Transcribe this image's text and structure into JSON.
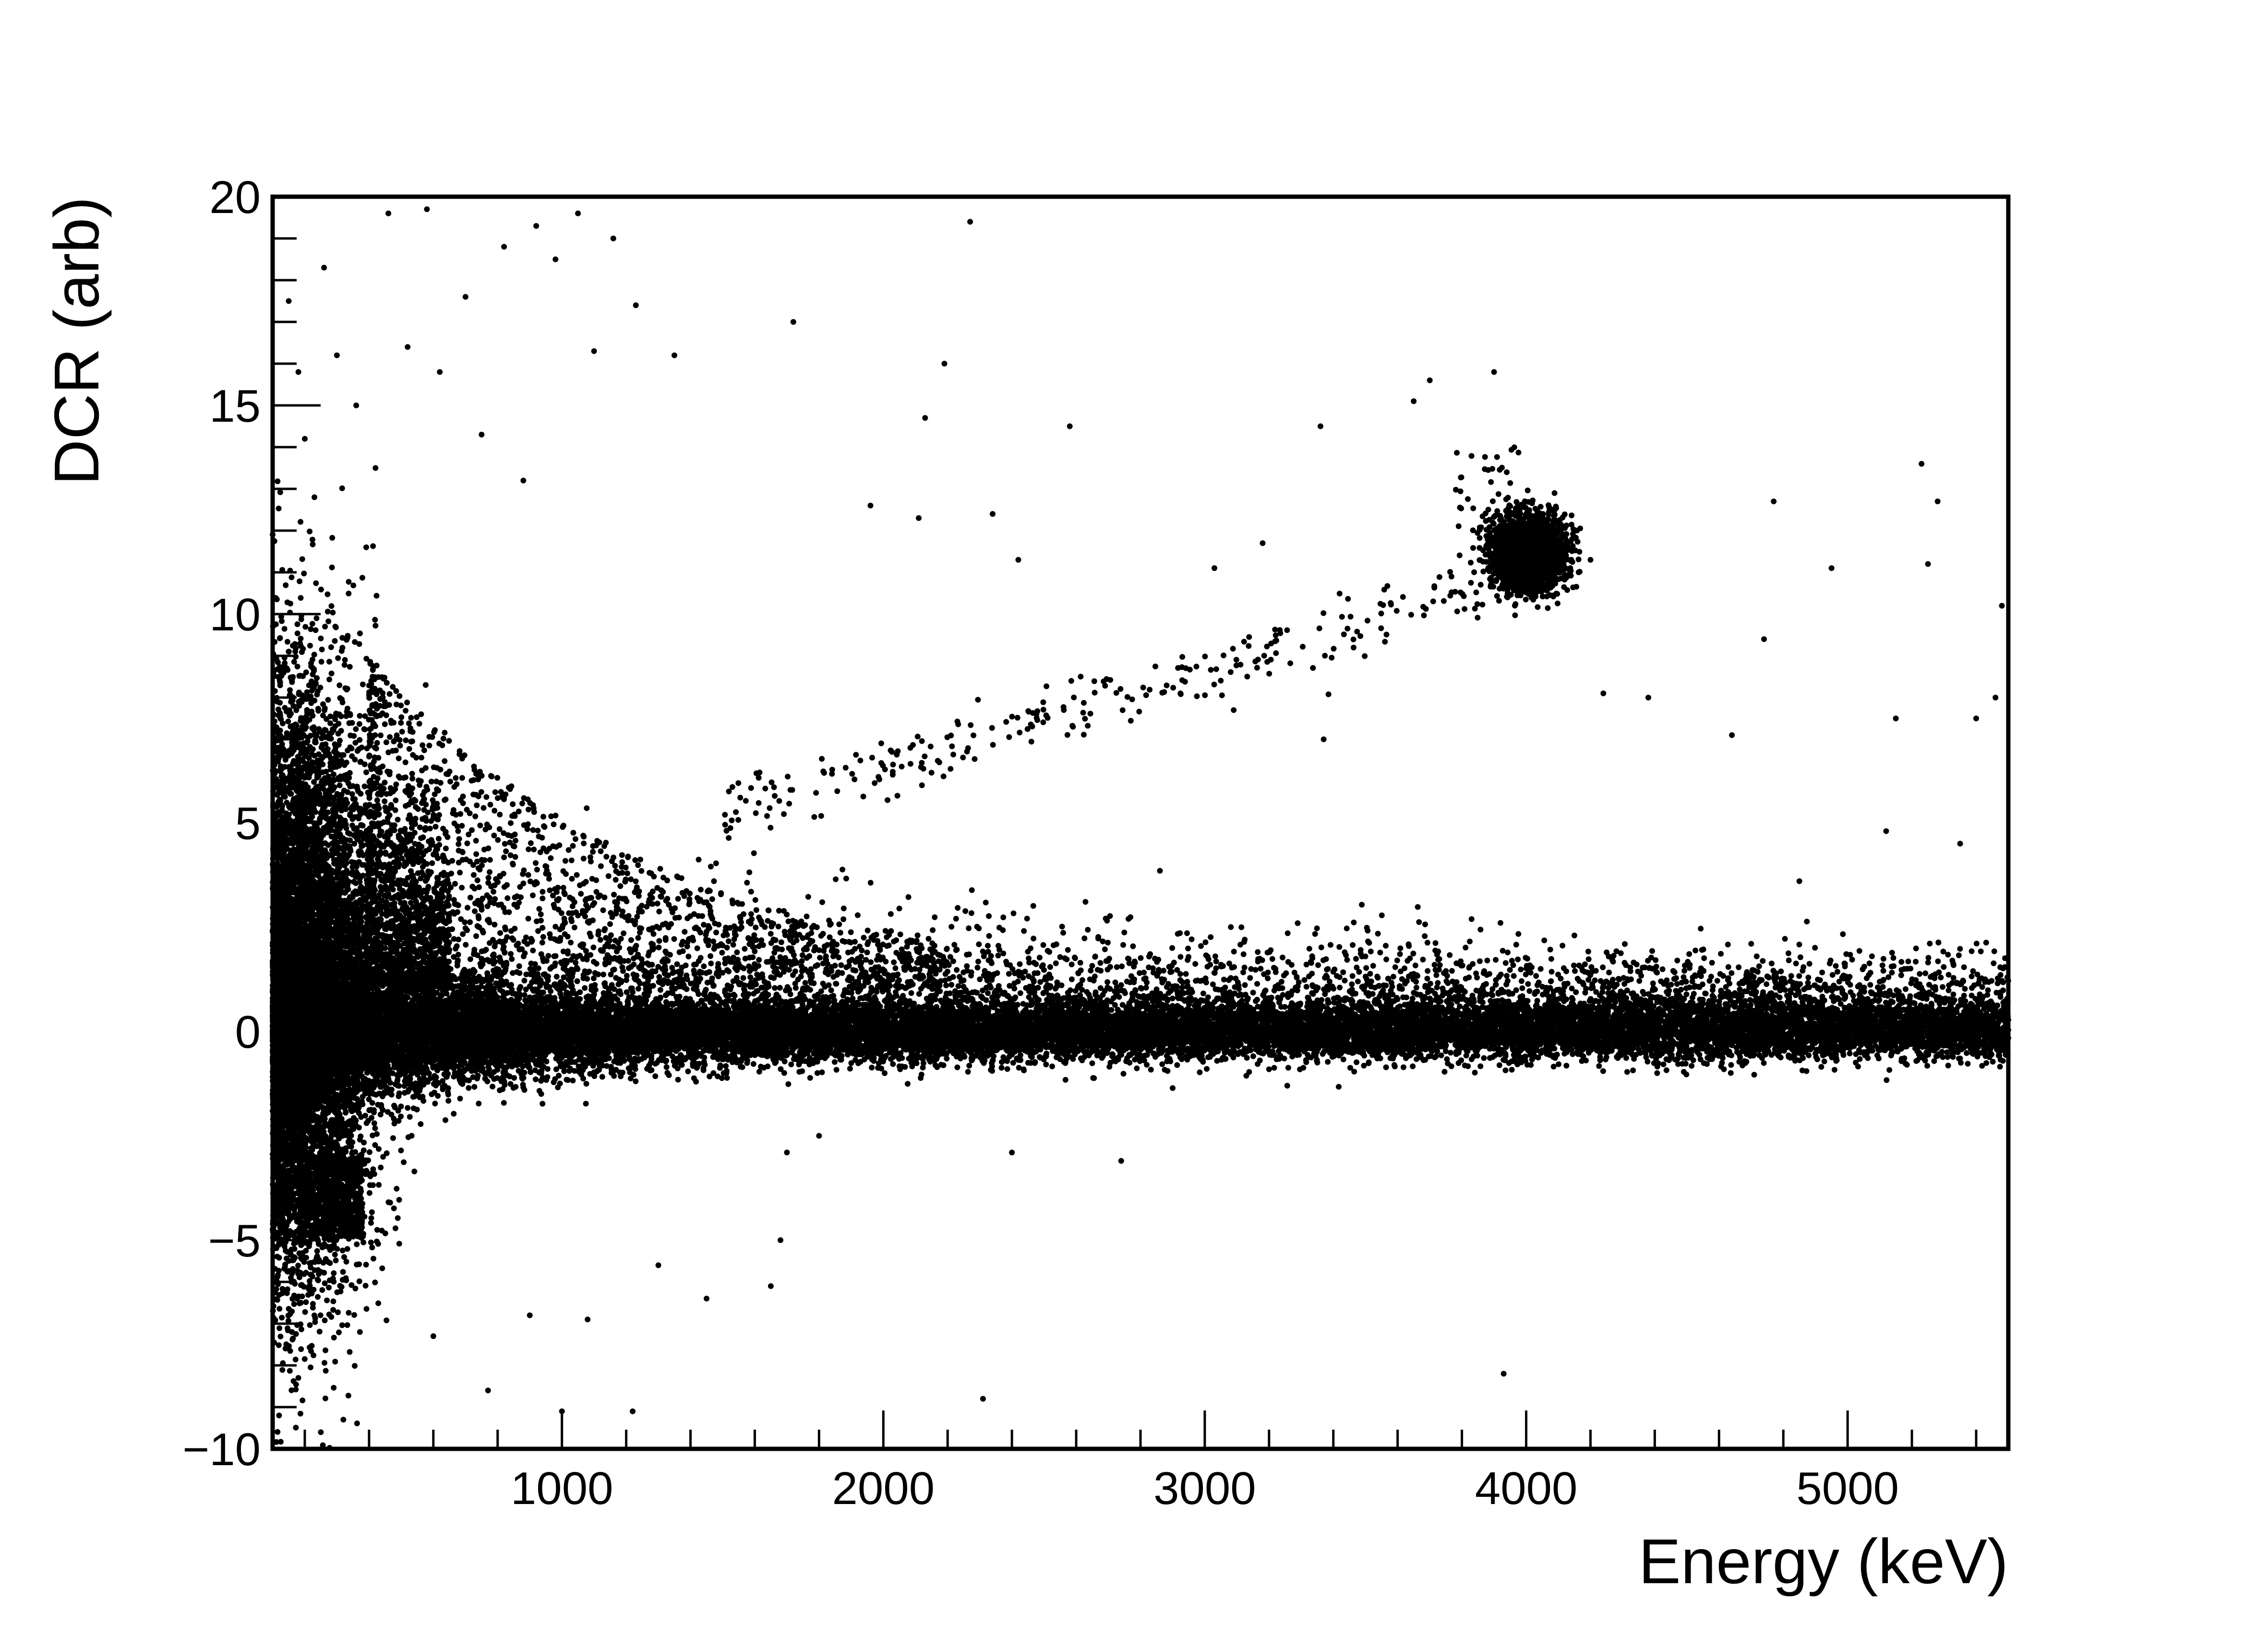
{
  "chart_data": {
    "type": "scatter",
    "title": "",
    "xlabel": "Energy (keV)",
    "ylabel": "DCR (arb)",
    "xlim": [
      100,
      5500
    ],
    "ylim": [
      -10,
      20
    ],
    "grid": false,
    "x_major_ticks": [
      1000,
      2000,
      3000,
      4000,
      5000
    ],
    "x_tick_labels": [
      "1000",
      "2000",
      "3000",
      "4000",
      "5000"
    ],
    "y_major_ticks": [
      -10,
      -5,
      0,
      5,
      10,
      15,
      20
    ],
    "y_tick_labels": [
      "−10",
      "−5",
      "0",
      "5",
      "10",
      "15",
      "20"
    ],
    "marker_color": "#000000",
    "features": [
      {
        "name": "main band",
        "x_range": [
          100,
          5500
        ],
        "y_center": 0.0,
        "y_spread": 0.35
      },
      {
        "name": "low-energy spread",
        "x_range": [
          100,
          400
        ],
        "y_range": [
          -6,
          12
        ]
      },
      {
        "name": "alpha cluster",
        "x_center": 4000,
        "y_center": 11.5,
        "x_spread": 60,
        "y_spread": 0.4
      },
      {
        "name": "alpha tail",
        "x_range": [
          1500,
          3900
        ],
        "y_range": [
          5,
          11
        ]
      }
    ],
    "series": [
      {
        "points": [
          [
            150,
            17.5
          ],
          [
            180,
            15.8
          ],
          [
            200,
            14.2
          ],
          [
            230,
            12.8
          ],
          [
            260,
            18.3
          ],
          [
            300,
            16.2
          ],
          [
            360,
            15.0
          ],
          [
            420,
            13.5
          ],
          [
            460,
            19.6
          ],
          [
            520,
            16.4
          ],
          [
            580,
            19.7
          ],
          [
            620,
            15.8
          ],
          [
            700,
            17.6
          ],
          [
            750,
            14.3
          ],
          [
            820,
            18.8
          ],
          [
            880,
            13.2
          ],
          [
            920,
            19.3
          ],
          [
            980,
            18.5
          ],
          [
            1050,
            19.6
          ],
          [
            1100,
            16.3
          ],
          [
            1160,
            19.0
          ],
          [
            1230,
            17.4
          ],
          [
            1350,
            16.2
          ],
          [
            1720,
            17.0
          ],
          [
            2270,
            19.4
          ],
          [
            2190,
            16.0
          ],
          [
            2580,
            14.5
          ],
          [
            2130,
            14.7
          ],
          [
            3360,
            14.5
          ],
          [
            3650,
            15.1
          ],
          [
            3700,
            15.6
          ],
          [
            3900,
            15.8
          ],
          [
            5230,
            13.6
          ],
          [
            5280,
            12.7
          ],
          [
            4770,
            12.7
          ],
          [
            4950,
            11.1
          ],
          [
            5250,
            11.2
          ],
          [
            4200,
            11.3
          ],
          [
            3030,
            11.1
          ],
          [
            3180,
            11.7
          ],
          [
            2340,
            12.4
          ],
          [
            2420,
            11.3
          ],
          [
            2110,
            12.3
          ],
          [
            1960,
            12.6
          ],
          [
            5480,
            10.2
          ],
          [
            5460,
            8.0
          ],
          [
            5400,
            7.5
          ],
          [
            5150,
            7.5
          ],
          [
            4740,
            9.4
          ],
          [
            4640,
            7.1
          ],
          [
            4380,
            8.0
          ],
          [
            4240,
            8.1
          ],
          [
            3370,
            7.0
          ],
          [
            3090,
            7.7
          ],
          [
            2590,
            7.3
          ],
          [
            2150,
            6.2
          ],
          [
            2120,
            5.9
          ],
          [
            4850,
            3.6
          ],
          [
            5120,
            4.8
          ],
          [
            5350,
            4.5
          ],
          [
            4700,
            2.1
          ],
          [
            4470,
            1.7
          ],
          [
            3920,
            2.6
          ],
          [
            4150,
            2.3
          ],
          [
            2740,
            -3.1
          ],
          [
            2400,
            -2.9
          ],
          [
            1700,
            -2.9
          ],
          [
            1650,
            -6.1
          ],
          [
            1680,
            -5.0
          ],
          [
            1450,
            -6.4
          ],
          [
            1000,
            -9.1
          ],
          [
            1220,
            -9.1
          ],
          [
            770,
            -8.6
          ],
          [
            3930,
            -8.2
          ],
          [
            2310,
            -8.8
          ],
          [
            250,
            -9.6
          ],
          [
            180,
            -8.3
          ],
          [
            320,
            -9.3
          ],
          [
            120,
            -9.2
          ],
          [
            900,
            -6.8
          ],
          [
            600,
            -7.3
          ],
          [
            1080,
            -6.9
          ],
          [
            160,
            -7.2
          ],
          [
            1800,
            -2.5
          ],
          [
            1300,
            -5.6
          ]
        ]
      }
    ]
  }
}
